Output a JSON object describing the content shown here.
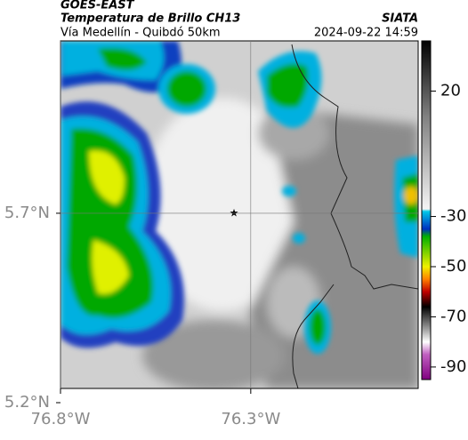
{
  "header": {
    "title": "GOES-EAST",
    "subtitle": "Temperatura de Brillo CH13",
    "source": "SIATA",
    "route": "Vía Medellín - Quibdó 50km",
    "timestamp": "2024-09-22 14:59"
  },
  "map": {
    "xlim": [
      -76.8,
      -75.86
    ],
    "ylim": [
      5.2,
      6.155
    ],
    "xticks": [
      {
        "value": -76.8,
        "label": "76.8°W"
      },
      {
        "value": -76.3,
        "label": "76.3°W"
      }
    ],
    "yticks": [
      {
        "value": 5.2,
        "label": "5.2°N"
      },
      {
        "value": 5.7,
        "label": "5.7°N"
      }
    ],
    "grid": true
  },
  "colorbar": {
    "lim": [
      40,
      -95
    ],
    "ticks": [
      20,
      -30,
      -50,
      -70,
      -90
    ],
    "stops": [
      {
        "value": 40,
        "color": "#000000"
      },
      {
        "value": 10,
        "color": "#808080"
      },
      {
        "value": -27,
        "color": "#f4f4f4"
      },
      {
        "value": -28,
        "color": "#00c8e8"
      },
      {
        "value": -35,
        "color": "#0030c0"
      },
      {
        "value": -38,
        "color": "#00b000"
      },
      {
        "value": -50,
        "color": "#f0f000"
      },
      {
        "value": -55,
        "color": "#ff8000"
      },
      {
        "value": -60,
        "color": "#c00000"
      },
      {
        "value": -66,
        "color": "#000000"
      },
      {
        "value": -75,
        "color": "#a0a0a0"
      },
      {
        "value": -80,
        "color": "#ffffff"
      },
      {
        "value": -85,
        "color": "#c060c0"
      },
      {
        "value": -95,
        "color": "#800080"
      }
    ]
  }
}
